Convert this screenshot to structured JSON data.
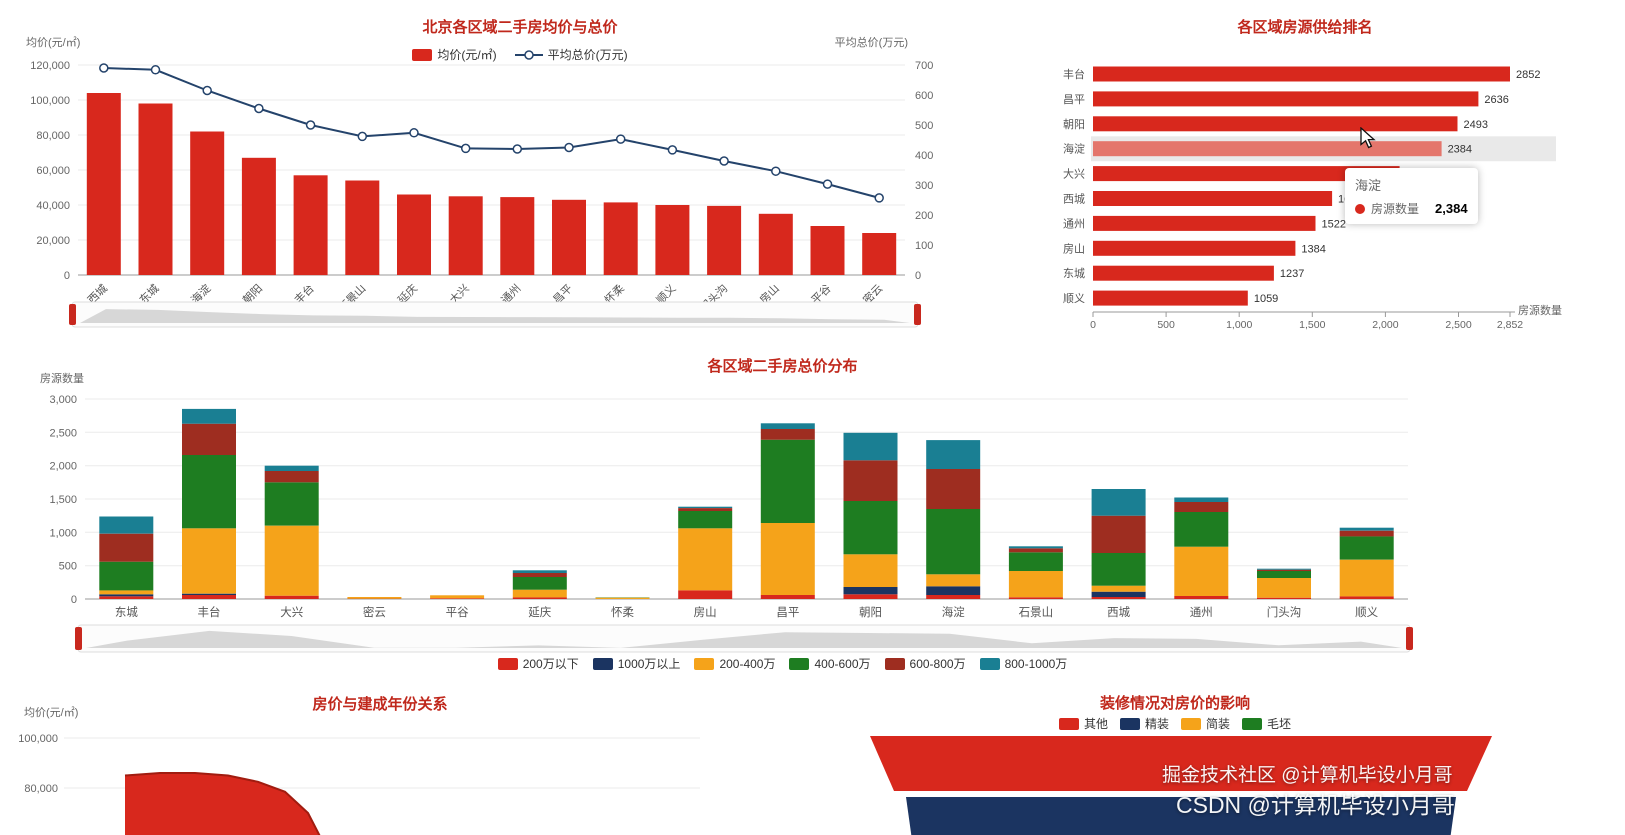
{
  "colors": {
    "red": "#d8281d",
    "navy": "#1b3461",
    "orange": "#f5a31a",
    "green": "#1e7d21",
    "brown": "#9e2d20",
    "teal": "#1a7f93",
    "line": "#24436b",
    "highlight": "#e4766c",
    "title": "#c0281c"
  },
  "chart_data": [
    {
      "id": "avg_price_and_total",
      "type": "bar+line",
      "title": "北京各区域二手房均价与总价",
      "categories": [
        "西城",
        "东城",
        "海淀",
        "朝阳",
        "丰台",
        "石景山",
        "延庆",
        "大兴",
        "通州",
        "昌平",
        "怀柔",
        "顺义",
        "门头沟",
        "房山",
        "平谷",
        "密云"
      ],
      "series": [
        {
          "name": "均价(元/㎡)",
          "type": "bar",
          "values": [
            104000,
            98000,
            82000,
            67000,
            57000,
            54000,
            46000,
            45000,
            44500,
            43000,
            41500,
            40000,
            39500,
            35000,
            28000,
            24000
          ]
        },
        {
          "name": "平均总价(万元)",
          "type": "line",
          "axis": "right",
          "values": [
            690,
            684,
            615,
            555,
            500,
            462,
            474,
            422,
            420,
            425,
            453,
            417,
            380,
            346,
            303,
            257
          ]
        }
      ],
      "y_left": {
        "label": "均价(元/㎡)",
        "min": 0,
        "max": 120000,
        "ticks": [
          "0",
          "20,000",
          "40,000",
          "60,000",
          "80,000",
          "100,000",
          "120,000"
        ]
      },
      "y_right": {
        "label": "平均总价(万元)",
        "min": 0,
        "max": 700,
        "ticks": [
          "0",
          "100",
          "200",
          "300",
          "400",
          "500",
          "600",
          "700"
        ]
      }
    },
    {
      "id": "supply_ranking",
      "type": "bar-horizontal",
      "title": "各区域房源供给排名",
      "categories": [
        "丰台",
        "昌平",
        "朝阳",
        "海淀",
        "大兴",
        "西城",
        "通州",
        "房山",
        "东城",
        "顺义"
      ],
      "values": [
        2852,
        2636,
        2493,
        2384,
        2097,
        1635,
        1522,
        1384,
        1237,
        1059
      ],
      "x_max": 2852,
      "x_ticks": [
        0,
        500,
        1000,
        1500,
        2000,
        2500,
        2852
      ],
      "x_label": "房源数量",
      "highlight_index": 3,
      "tooltip": {
        "title": "海淀",
        "series_name": "房源数量",
        "value": "2,384"
      }
    },
    {
      "id": "total_price_distribution",
      "type": "stacked-bar",
      "title": "各区域二手房总价分布",
      "y_label": "房源数量",
      "y_max": 3000,
      "y_ticks": [
        "0",
        "500",
        "1,000",
        "1,500",
        "2,000",
        "2,500",
        "3,000"
      ],
      "categories": [
        "东城",
        "丰台",
        "大兴",
        "密云",
        "平谷",
        "延庆",
        "怀柔",
        "房山",
        "昌平",
        "朝阳",
        "海淀",
        "石景山",
        "西城",
        "通州",
        "门头沟",
        "顺义"
      ],
      "series": [
        {
          "name": "200万以下",
          "color": "#d8281d",
          "values": [
            40,
            60,
            50,
            5,
            10,
            25,
            0,
            130,
            60,
            70,
            60,
            25,
            30,
            45,
            20,
            40
          ]
        },
        {
          "name": "1000万以上",
          "color": "#1b3461",
          "values": [
            30,
            20,
            0,
            0,
            0,
            0,
            0,
            0,
            0,
            110,
            130,
            0,
            80,
            0,
            0,
            0
          ]
        },
        {
          "name": "200-400万",
          "color": "#f5a31a",
          "values": [
            60,
            980,
            1050,
            25,
            45,
            115,
            20,
            930,
            1080,
            490,
            180,
            395,
            90,
            740,
            295,
            550
          ]
        },
        {
          "name": "400-600万",
          "color": "#1e7d21",
          "values": [
            430,
            1100,
            650,
            0,
            0,
            190,
            5,
            260,
            1250,
            800,
            980,
            280,
            490,
            520,
            105,
            350
          ]
        },
        {
          "name": "600-800万",
          "color": "#9e2d20",
          "values": [
            420,
            470,
            170,
            0,
            0,
            60,
            0,
            44,
            160,
            610,
            600,
            60,
            560,
            150,
            20,
            85
          ]
        },
        {
          "name": "800-1000万",
          "color": "#1a7f93",
          "values": [
            257,
            222,
            80,
            0,
            0,
            40,
            0,
            20,
            86,
            413,
            434,
            30,
            400,
            67,
            15,
            44
          ]
        }
      ]
    },
    {
      "id": "price_by_build_year",
      "type": "area",
      "title": "房价与建成年份关系",
      "y_label": "均价(元/㎡)",
      "y_ticks_visible": [
        "100,000",
        "80,000"
      ],
      "values_visible": [
        85000,
        86000,
        86000,
        85000,
        82500,
        78500,
        70000,
        56000
      ]
    },
    {
      "id": "decoration_price_effect",
      "type": "funnel",
      "title": "装修情况对房价的影响",
      "legend": [
        {
          "name": "其他",
          "color": "#d8281d"
        },
        {
          "name": "精装",
          "color": "#1b3461"
        },
        {
          "name": "简装",
          "color": "#f5a31a"
        },
        {
          "name": "毛坯",
          "color": "#1e7d21"
        }
      ]
    }
  ],
  "watermarks": [
    "掘金技术社区 @计算机毕设小月哥",
    "CSDN @计算机毕设小月哥"
  ]
}
